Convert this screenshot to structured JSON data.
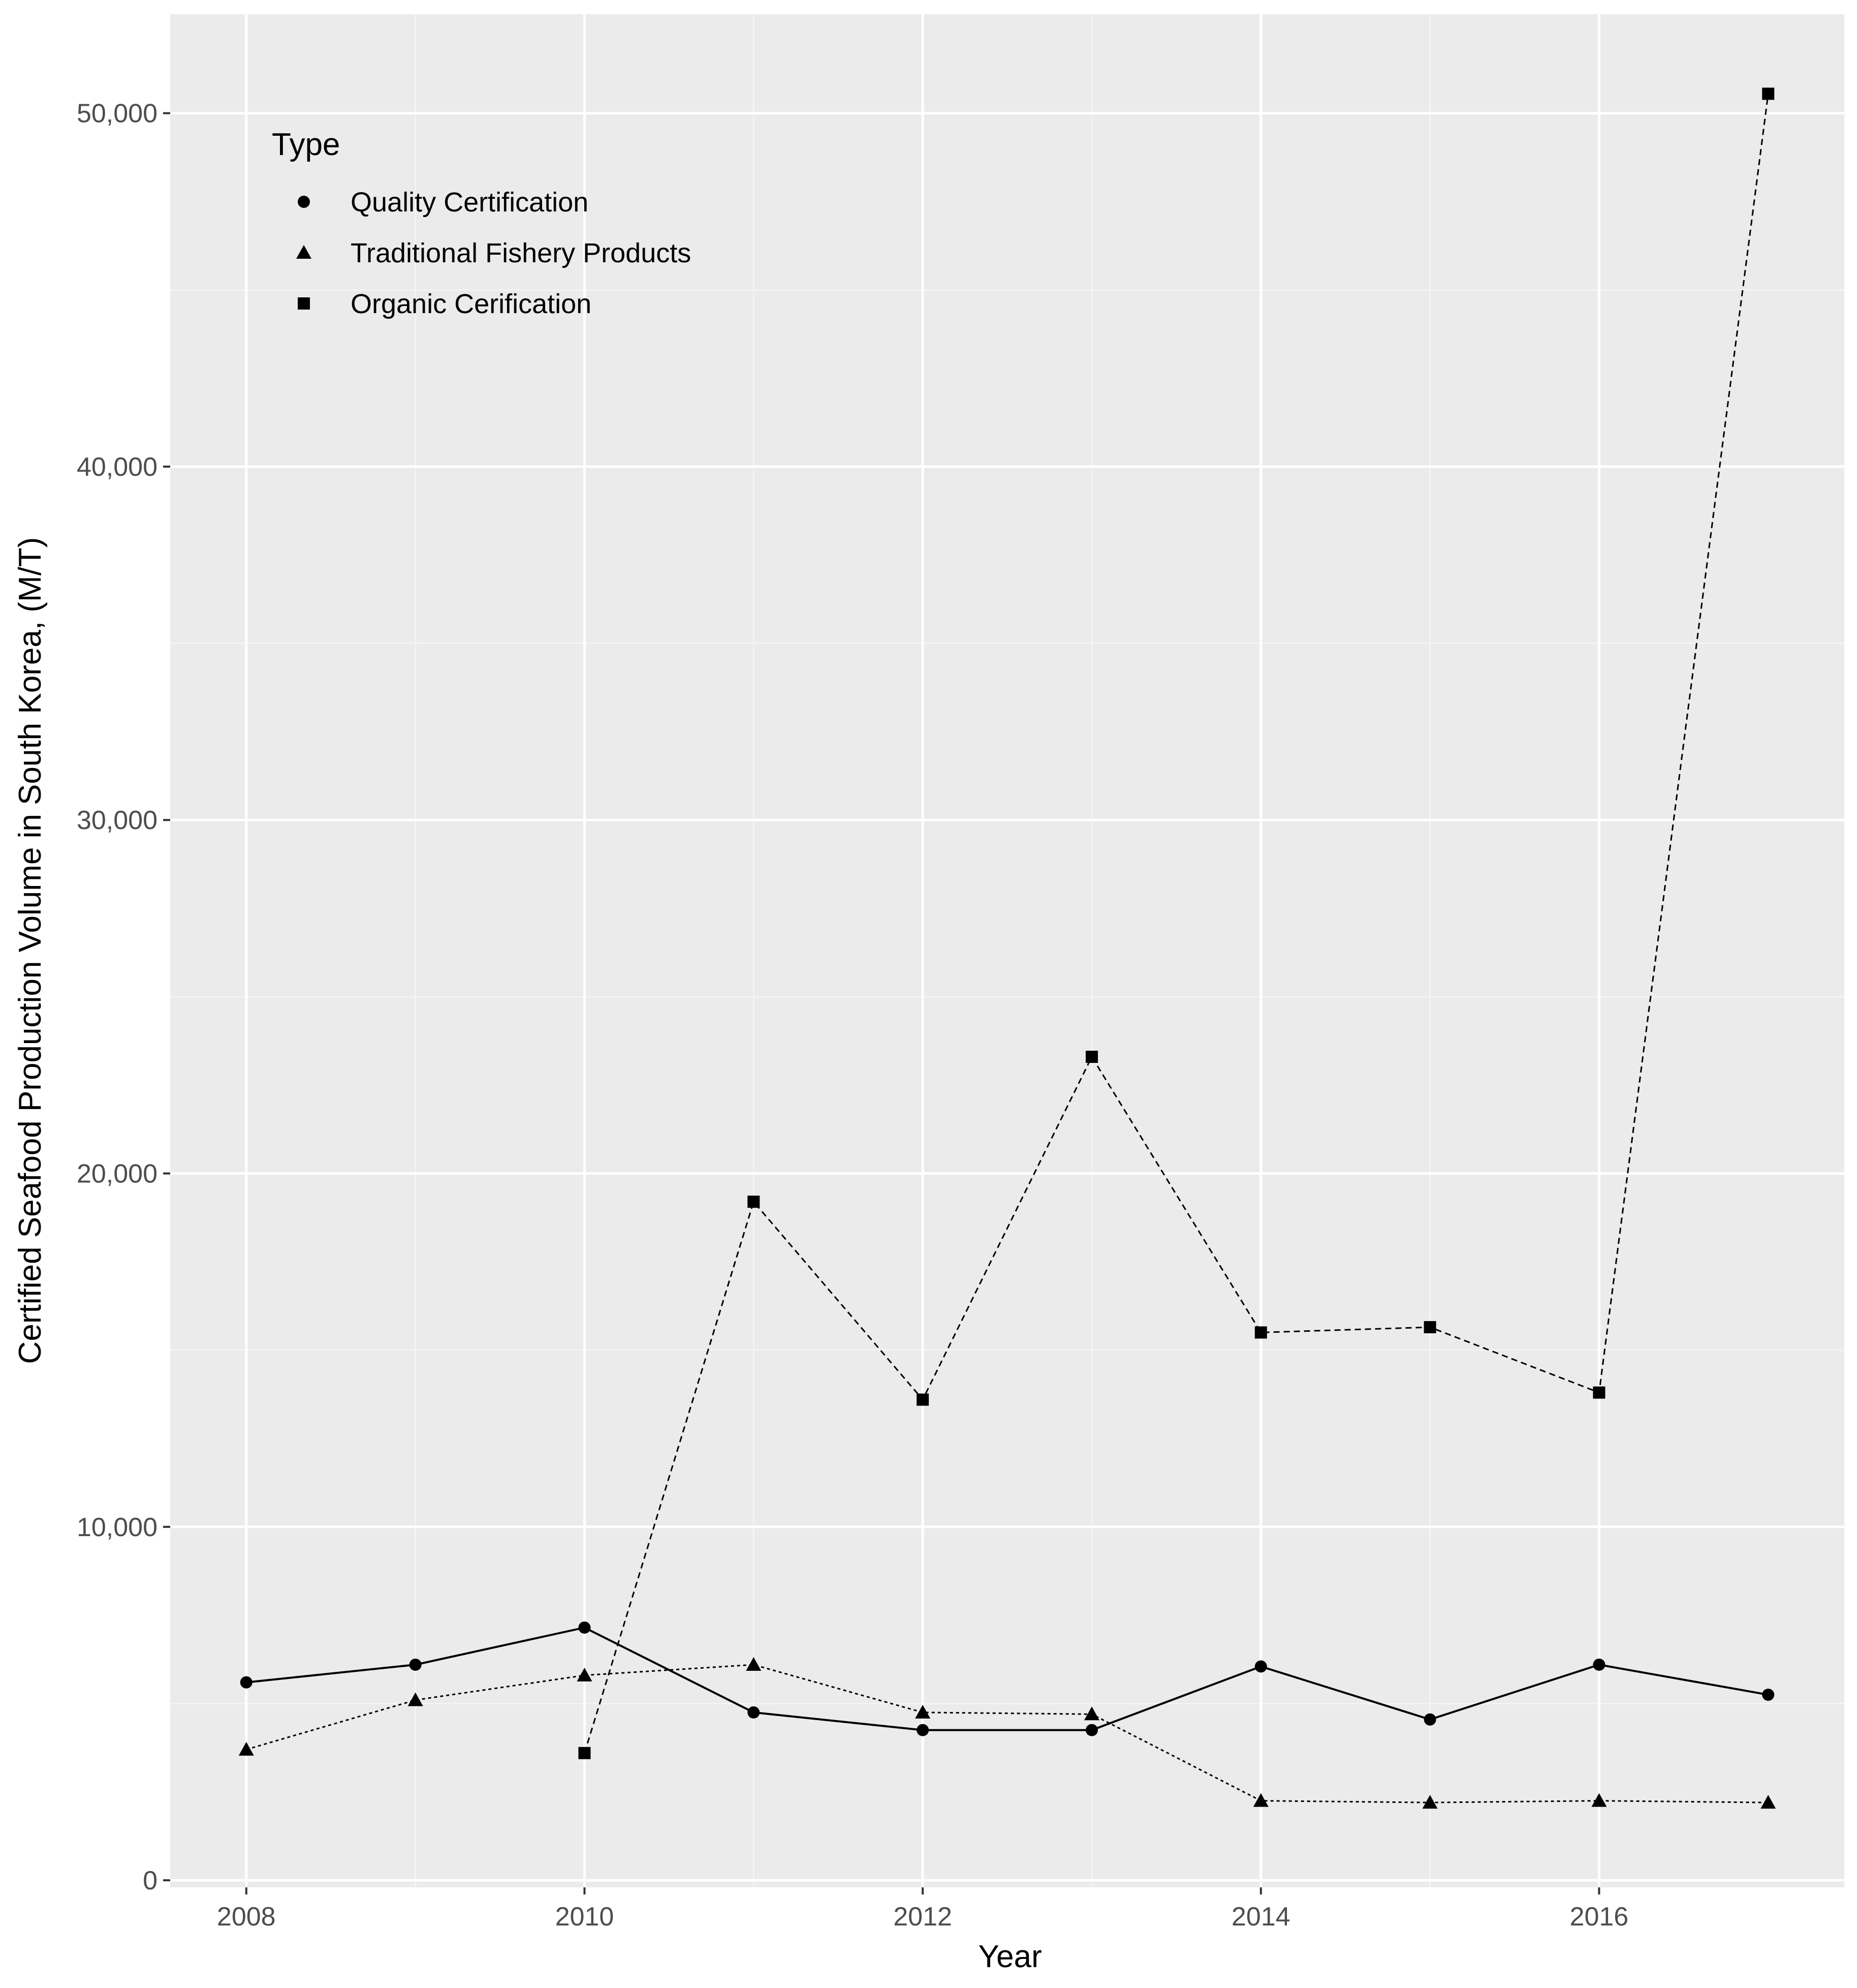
{
  "colors": {
    "panel": "#ebebeb",
    "grid_major": "#ffffff",
    "grid_minor": "#f5f5f5",
    "series": "#000000"
  },
  "chart_data": {
    "type": "line",
    "title": "",
    "xlabel": "Year",
    "ylabel": "Certified Seafood Production Volume in South Korea, (M/T)",
    "xlim": [
      2007.55,
      2017.45
    ],
    "ylim": [
      -200,
      52800
    ],
    "x_ticks": [
      2008,
      2010,
      2012,
      2014,
      2016
    ],
    "x_tick_labels": [
      "2008",
      "2010",
      "2012",
      "2014",
      "2016"
    ],
    "y_ticks": [
      0,
      10000,
      20000,
      30000,
      40000,
      50000
    ],
    "y_tick_labels": [
      "0",
      "10,000",
      "20,000",
      "30,000",
      "40,000",
      "50,000"
    ],
    "grid": true,
    "legend": {
      "title": "Type",
      "position": "top-left"
    },
    "series": [
      {
        "name": "Quality Certification",
        "marker": "circle",
        "line": "solid",
        "x": [
          2008,
          2009,
          2010,
          2011,
          2012,
          2013,
          2014,
          2015,
          2016,
          2017
        ],
        "values": [
          5600,
          6100,
          7150,
          4750,
          4250,
          4250,
          6050,
          4550,
          6100,
          5250
        ]
      },
      {
        "name": "Traditional Fishery Products",
        "marker": "triangle",
        "line": "dotted",
        "x": [
          2008,
          2009,
          2010,
          2011,
          2012,
          2013,
          2014,
          2015,
          2016,
          2017
        ],
        "values": [
          3700,
          5100,
          5800,
          6100,
          4750,
          4700,
          2250,
          2200,
          2250,
          2200
        ]
      },
      {
        "name": "Organic Cerification",
        "marker": "square",
        "line": "dashed",
        "x": [
          2010,
          2011,
          2012,
          2013,
          2014,
          2015,
          2016,
          2017
        ],
        "values": [
          3600,
          19200,
          13600,
          23300,
          15500,
          15650,
          13800,
          50550
        ]
      }
    ]
  }
}
